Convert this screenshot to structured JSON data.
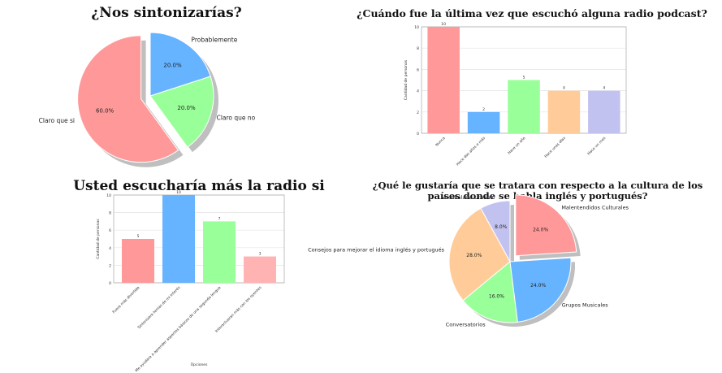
{
  "chart_data": [
    {
      "type": "pie",
      "title": "¿Nos sintonizarías?",
      "labels": [
        "Claro que si",
        "Claro que no",
        "Probablemente"
      ],
      "values": [
        60.0,
        20.0,
        20.0
      ],
      "value_labels": [
        "60.0%",
        "20.0%",
        "20.0%"
      ],
      "colors": [
        "#ff9999",
        "#99ff99",
        "#66b3ff"
      ],
      "exploded": "Claro que si",
      "shadow": true
    },
    {
      "type": "bar",
      "title": "¿Cuándo fue la última vez que escuchó alguna radio podcast?",
      "categories": [
        "Nunca",
        "Hace dos años o más",
        "Hace un año",
        "Hace unas días",
        "Hace un mes"
      ],
      "values": [
        10,
        2,
        5,
        4,
        4
      ],
      "colors": [
        "#ff9999",
        "#66b3ff",
        "#99ff99",
        "#ffcc99",
        "#c2c2f0"
      ],
      "ylabel": "Cantidad de personas",
      "ylim": [
        0,
        10
      ],
      "yticks": [
        0,
        2,
        4,
        6,
        8,
        10
      ],
      "grid": true
    },
    {
      "type": "bar",
      "title": "Usted escucharía más la radio si",
      "categories": [
        "Fuera más divertida",
        "Sintonizara temas de mi interés",
        "Me ayudara a aprender aspectos básicos de una segunda lengua",
        "Interactuaran más con los oyentes"
      ],
      "values": [
        5,
        10,
        7,
        3
      ],
      "colors": [
        "#ff9999",
        "#66b3ff",
        "#99ff99",
        "#ffb3b3"
      ],
      "ylabel": "Cantidad de personas",
      "xlabel": "Opciones",
      "ylim": [
        0,
        10
      ],
      "yticks": [
        0,
        2,
        4,
        6,
        8,
        10
      ],
      "grid": true
    },
    {
      "type": "pie",
      "title": "¿Qué le gustaría que se tratara con respecto a la cultura de los países donde se habla inglés y portugués?",
      "labels": [
        "Vocabulario Urbano",
        "Consejos para mejorar el idioma inglés y portugués",
        "Conversatorios",
        "Grupos Musicales",
        "Malentendidos Culturales"
      ],
      "values": [
        8.0,
        28.0,
        16.0,
        24.0,
        24.0
      ],
      "value_labels": [
        "8.0%",
        "28.0%",
        "16.0%",
        "24.0%",
        "24.0%"
      ],
      "colors": [
        "#c2c2f0",
        "#ffcc99",
        "#99ff99",
        "#66b3ff",
        "#ff9999"
      ],
      "exploded": "Malentendidos Culturales",
      "shadow": true
    }
  ]
}
